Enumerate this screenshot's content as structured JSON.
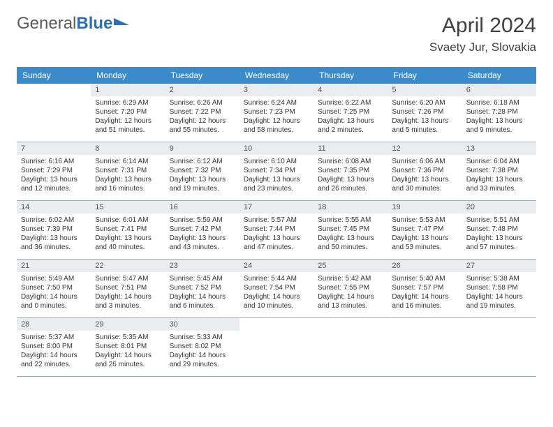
{
  "logo": {
    "text1": "General",
    "text2": "Blue"
  },
  "header": {
    "title": "April 2024",
    "location": "Svaety Jur, Slovakia"
  },
  "weekdays": [
    "Sunday",
    "Monday",
    "Tuesday",
    "Wednesday",
    "Thursday",
    "Friday",
    "Saturday"
  ],
  "colors": {
    "header_bg": "#3b8bca",
    "header_text": "#ffffff",
    "daynum_bg": "#e9edef",
    "border": "#9aaab8"
  },
  "cells": [
    {
      "empty": true
    },
    {
      "day": "1",
      "sunrise": "Sunrise: 6:29 AM",
      "sunset": "Sunset: 7:20 PM",
      "daylight1": "Daylight: 12 hours",
      "daylight2": "and 51 minutes."
    },
    {
      "day": "2",
      "sunrise": "Sunrise: 6:26 AM",
      "sunset": "Sunset: 7:22 PM",
      "daylight1": "Daylight: 12 hours",
      "daylight2": "and 55 minutes."
    },
    {
      "day": "3",
      "sunrise": "Sunrise: 6:24 AM",
      "sunset": "Sunset: 7:23 PM",
      "daylight1": "Daylight: 12 hours",
      "daylight2": "and 58 minutes."
    },
    {
      "day": "4",
      "sunrise": "Sunrise: 6:22 AM",
      "sunset": "Sunset: 7:25 PM",
      "daylight1": "Daylight: 13 hours",
      "daylight2": "and 2 minutes."
    },
    {
      "day": "5",
      "sunrise": "Sunrise: 6:20 AM",
      "sunset": "Sunset: 7:26 PM",
      "daylight1": "Daylight: 13 hours",
      "daylight2": "and 5 minutes."
    },
    {
      "day": "6",
      "sunrise": "Sunrise: 6:18 AM",
      "sunset": "Sunset: 7:28 PM",
      "daylight1": "Daylight: 13 hours",
      "daylight2": "and 9 minutes."
    },
    {
      "day": "7",
      "sunrise": "Sunrise: 6:16 AM",
      "sunset": "Sunset: 7:29 PM",
      "daylight1": "Daylight: 13 hours",
      "daylight2": "and 12 minutes."
    },
    {
      "day": "8",
      "sunrise": "Sunrise: 6:14 AM",
      "sunset": "Sunset: 7:31 PM",
      "daylight1": "Daylight: 13 hours",
      "daylight2": "and 16 minutes."
    },
    {
      "day": "9",
      "sunrise": "Sunrise: 6:12 AM",
      "sunset": "Sunset: 7:32 PM",
      "daylight1": "Daylight: 13 hours",
      "daylight2": "and 19 minutes."
    },
    {
      "day": "10",
      "sunrise": "Sunrise: 6:10 AM",
      "sunset": "Sunset: 7:34 PM",
      "daylight1": "Daylight: 13 hours",
      "daylight2": "and 23 minutes."
    },
    {
      "day": "11",
      "sunrise": "Sunrise: 6:08 AM",
      "sunset": "Sunset: 7:35 PM",
      "daylight1": "Daylight: 13 hours",
      "daylight2": "and 26 minutes."
    },
    {
      "day": "12",
      "sunrise": "Sunrise: 6:06 AM",
      "sunset": "Sunset: 7:36 PM",
      "daylight1": "Daylight: 13 hours",
      "daylight2": "and 30 minutes."
    },
    {
      "day": "13",
      "sunrise": "Sunrise: 6:04 AM",
      "sunset": "Sunset: 7:38 PM",
      "daylight1": "Daylight: 13 hours",
      "daylight2": "and 33 minutes."
    },
    {
      "day": "14",
      "sunrise": "Sunrise: 6:02 AM",
      "sunset": "Sunset: 7:39 PM",
      "daylight1": "Daylight: 13 hours",
      "daylight2": "and 36 minutes."
    },
    {
      "day": "15",
      "sunrise": "Sunrise: 6:01 AM",
      "sunset": "Sunset: 7:41 PM",
      "daylight1": "Daylight: 13 hours",
      "daylight2": "and 40 minutes."
    },
    {
      "day": "16",
      "sunrise": "Sunrise: 5:59 AM",
      "sunset": "Sunset: 7:42 PM",
      "daylight1": "Daylight: 13 hours",
      "daylight2": "and 43 minutes."
    },
    {
      "day": "17",
      "sunrise": "Sunrise: 5:57 AM",
      "sunset": "Sunset: 7:44 PM",
      "daylight1": "Daylight: 13 hours",
      "daylight2": "and 47 minutes."
    },
    {
      "day": "18",
      "sunrise": "Sunrise: 5:55 AM",
      "sunset": "Sunset: 7:45 PM",
      "daylight1": "Daylight: 13 hours",
      "daylight2": "and 50 minutes."
    },
    {
      "day": "19",
      "sunrise": "Sunrise: 5:53 AM",
      "sunset": "Sunset: 7:47 PM",
      "daylight1": "Daylight: 13 hours",
      "daylight2": "and 53 minutes."
    },
    {
      "day": "20",
      "sunrise": "Sunrise: 5:51 AM",
      "sunset": "Sunset: 7:48 PM",
      "daylight1": "Daylight: 13 hours",
      "daylight2": "and 57 minutes."
    },
    {
      "day": "21",
      "sunrise": "Sunrise: 5:49 AM",
      "sunset": "Sunset: 7:50 PM",
      "daylight1": "Daylight: 14 hours",
      "daylight2": "and 0 minutes."
    },
    {
      "day": "22",
      "sunrise": "Sunrise: 5:47 AM",
      "sunset": "Sunset: 7:51 PM",
      "daylight1": "Daylight: 14 hours",
      "daylight2": "and 3 minutes."
    },
    {
      "day": "23",
      "sunrise": "Sunrise: 5:45 AM",
      "sunset": "Sunset: 7:52 PM",
      "daylight1": "Daylight: 14 hours",
      "daylight2": "and 6 minutes."
    },
    {
      "day": "24",
      "sunrise": "Sunrise: 5:44 AM",
      "sunset": "Sunset: 7:54 PM",
      "daylight1": "Daylight: 14 hours",
      "daylight2": "and 10 minutes."
    },
    {
      "day": "25",
      "sunrise": "Sunrise: 5:42 AM",
      "sunset": "Sunset: 7:55 PM",
      "daylight1": "Daylight: 14 hours",
      "daylight2": "and 13 minutes."
    },
    {
      "day": "26",
      "sunrise": "Sunrise: 5:40 AM",
      "sunset": "Sunset: 7:57 PM",
      "daylight1": "Daylight: 14 hours",
      "daylight2": "and 16 minutes."
    },
    {
      "day": "27",
      "sunrise": "Sunrise: 5:38 AM",
      "sunset": "Sunset: 7:58 PM",
      "daylight1": "Daylight: 14 hours",
      "daylight2": "and 19 minutes."
    },
    {
      "day": "28",
      "sunrise": "Sunrise: 5:37 AM",
      "sunset": "Sunset: 8:00 PM",
      "daylight1": "Daylight: 14 hours",
      "daylight2": "and 22 minutes."
    },
    {
      "day": "29",
      "sunrise": "Sunrise: 5:35 AM",
      "sunset": "Sunset: 8:01 PM",
      "daylight1": "Daylight: 14 hours",
      "daylight2": "and 26 minutes."
    },
    {
      "day": "30",
      "sunrise": "Sunrise: 5:33 AM",
      "sunset": "Sunset: 8:02 PM",
      "daylight1": "Daylight: 14 hours",
      "daylight2": "and 29 minutes."
    },
    {
      "empty": true
    },
    {
      "empty": true
    },
    {
      "empty": true
    },
    {
      "empty": true
    }
  ]
}
